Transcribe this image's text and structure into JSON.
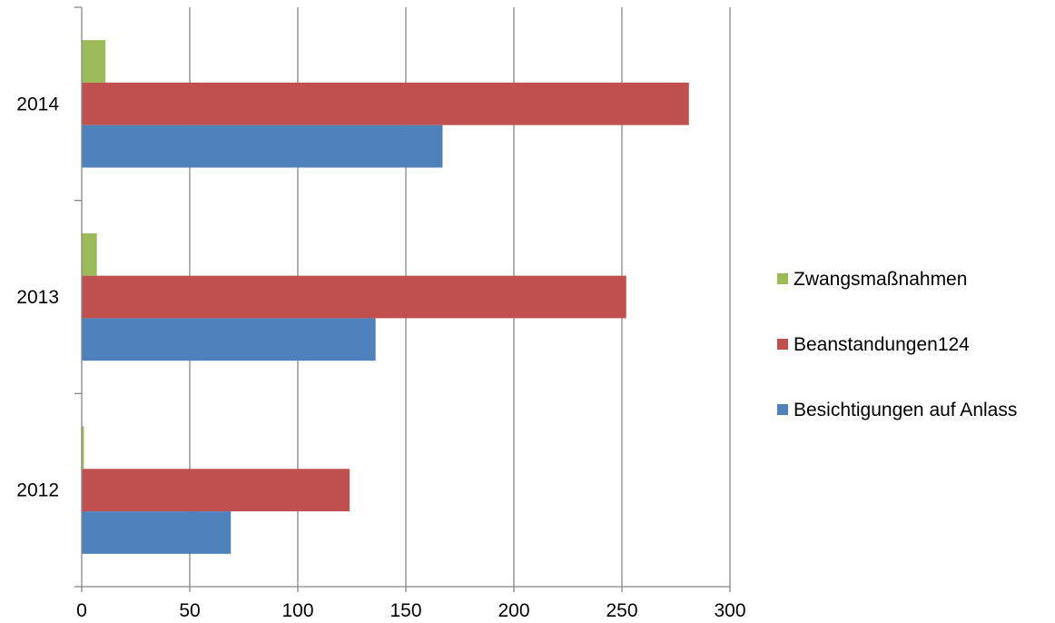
{
  "chart_data": {
    "type": "bar",
    "orientation": "horizontal",
    "title": "",
    "xlabel": "",
    "ylabel": "",
    "xlim": [
      0,
      300
    ],
    "x_ticks": [
      "0",
      "50",
      "100",
      "150",
      "200",
      "250",
      "300"
    ],
    "categories": [
      "2012",
      "2013",
      "2014"
    ],
    "series": [
      {
        "name": "Besichtigungen auf Anlass",
        "color": "#4F81BD",
        "values": [
          69,
          136,
          167
        ]
      },
      {
        "name": "Beanstandungen124",
        "color": "#C0504D",
        "values": [
          124,
          252,
          281
        ]
      },
      {
        "name": "Zwangsmaßnahmen",
        "color": "#9BBB59",
        "values": [
          1,
          7,
          11
        ]
      }
    ],
    "legend_order": [
      "Zwangsmaßnahmen",
      "Beanstandungen124",
      "Besichtigungen auf Anlass"
    ],
    "legend_position": "right",
    "grid": true
  }
}
